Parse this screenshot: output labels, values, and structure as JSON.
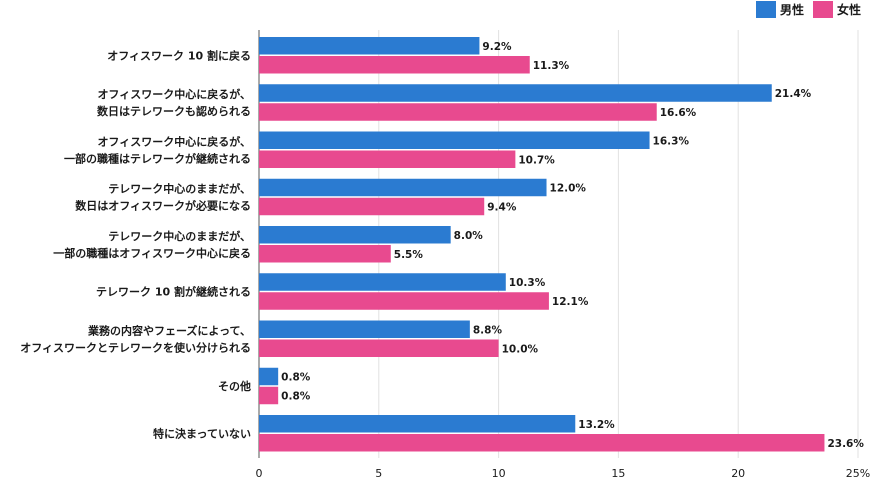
{
  "chart_data": {
    "type": "bar",
    "orientation": "horizontal",
    "categories": [
      [
        "オフィスワーク 10 割に戻る"
      ],
      [
        "オフィスワーク中心に戻るが、",
        "数日はテレワークも認められる"
      ],
      [
        "オフィスワーク中心に戻るが、",
        "一部の職種はテレワークが継続される"
      ],
      [
        "テレワーク中心のままだが、",
        "数日はオフィスワークが必要になる"
      ],
      [
        "テレワーク中心のままだが、",
        "一部の職種はオフィスワーク中心に戻る"
      ],
      [
        "テレワーク 10 割が継続される"
      ],
      [
        "業務の内容やフェーズによって、",
        "オフィスワークとテレワークを使い分けられる"
      ],
      [
        "その他"
      ],
      [
        "特に決まっていない"
      ]
    ],
    "series": [
      {
        "name": "男性",
        "color": "#2b7bd1",
        "values": [
          9.2,
          21.4,
          16.3,
          12.0,
          8.0,
          10.3,
          8.8,
          0.8,
          13.2
        ]
      },
      {
        "name": "女性",
        "color": "#e84a8f",
        "values": [
          11.3,
          16.6,
          10.7,
          9.4,
          5.5,
          12.1,
          10.0,
          0.8,
          23.6
        ]
      }
    ],
    "xlim": [
      0,
      25
    ],
    "xticks": [
      "0",
      "5",
      "10",
      "15",
      "20",
      "25%"
    ],
    "value_suffix": "%",
    "grid": true,
    "legend_position": "top-right"
  }
}
